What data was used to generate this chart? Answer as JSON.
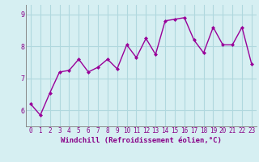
{
  "x": [
    0,
    1,
    2,
    3,
    4,
    5,
    6,
    7,
    8,
    9,
    10,
    11,
    12,
    13,
    14,
    15,
    16,
    17,
    18,
    19,
    20,
    21,
    22,
    23
  ],
  "y": [
    6.2,
    5.85,
    6.55,
    7.2,
    7.25,
    7.6,
    7.2,
    7.35,
    7.6,
    7.3,
    8.05,
    7.65,
    8.25,
    7.75,
    8.8,
    8.85,
    8.9,
    8.2,
    7.8,
    8.6,
    8.05,
    8.05,
    8.6,
    7.45
  ],
  "line_color": "#990099",
  "marker": "D",
  "markersize": 2.0,
  "linewidth": 1.0,
  "xlabel": "Windchill (Refroidissement éolien,°C)",
  "xlabel_fontsize": 6.5,
  "ylim": [
    5.5,
    9.3
  ],
  "xlim": [
    -0.5,
    23.5
  ],
  "yticks": [
    6,
    7,
    8,
    9
  ],
  "xticks": [
    0,
    1,
    2,
    3,
    4,
    5,
    6,
    7,
    8,
    9,
    10,
    11,
    12,
    13,
    14,
    15,
    16,
    17,
    18,
    19,
    20,
    21,
    22,
    23
  ],
  "background_color": "#d6eff2",
  "grid_color": "#b0d8de",
  "tick_color": "#880088",
  "label_color": "#880088",
  "tick_fontsize": 5.5,
  "spine_color": "#888888"
}
